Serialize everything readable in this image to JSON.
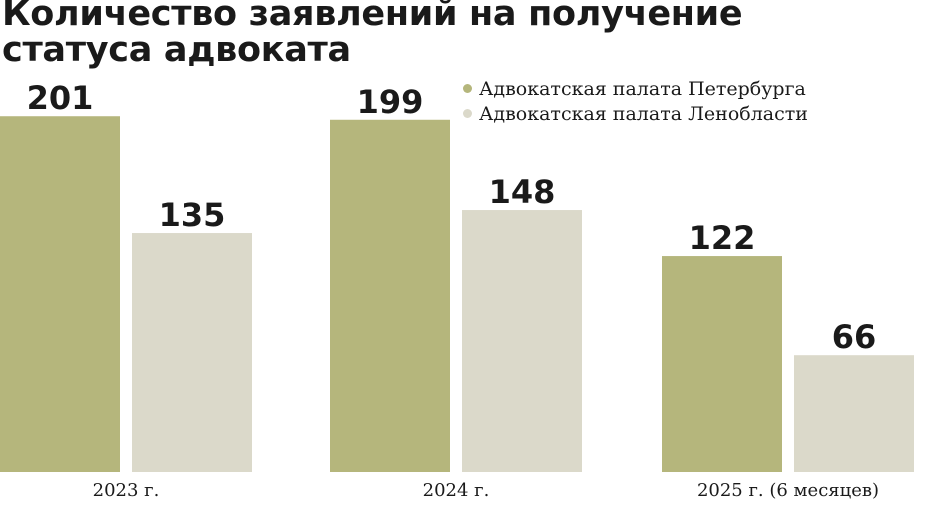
{
  "chart_data": {
    "type": "bar",
    "title": "Количество заявлений на получение статуса адвоката",
    "categories": [
      "2023 г.",
      "2024 г.",
      "2025 г. (6 месяцев)"
    ],
    "series": [
      {
        "name": "Адвокатская палата Петербурга",
        "color": "#b5b67c",
        "values": [
          201,
          199,
          122
        ]
      },
      {
        "name": "Адвокатская палата Ленобласти",
        "color": "#dbd9ca",
        "values": [
          135,
          148,
          66
        ]
      }
    ],
    "legend_position": "top-right",
    "grid": false
  }
}
